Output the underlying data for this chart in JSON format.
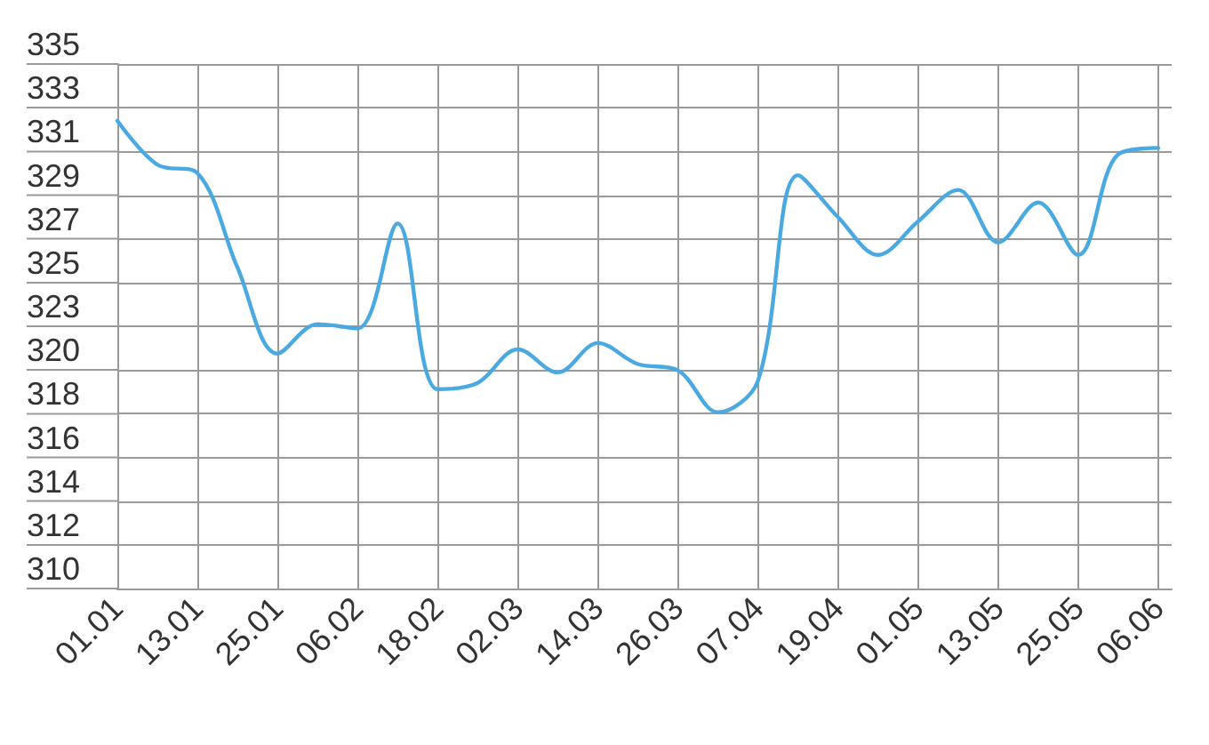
{
  "chart_data": {
    "type": "line",
    "x": [
      "--01-01",
      "--01-07",
      "--01-13",
      "--01-19",
      "--01-25",
      "--01-31",
      "--02-06",
      "--02-12",
      "--02-18",
      "--02-24",
      "--03-02",
      "--03-08",
      "--03-14",
      "--03-20",
      "--03-26",
      "--04-01",
      "--04-07",
      "--04-13",
      "--04-19",
      "--04-25",
      "--05-01",
      "--05-07",
      "--05-13",
      "--05-19",
      "--05-25",
      "--05-31",
      "--06-06"
    ],
    "values": [
      332.3,
      330.2,
      329.8,
      325.3,
      321.2,
      322.6,
      322.4,
      327.4,
      319.5,
      319.8,
      321.4,
      320.3,
      321.7,
      320.7,
      320.4,
      318.4,
      319.9,
      329.7,
      327.7,
      325.9,
      327.5,
      329.0,
      326.5,
      328.4,
      325.9,
      330.7,
      331.0
    ],
    "color": "#4ba9e2",
    "xlim": [
      "--01-01",
      "--06-08"
    ],
    "xticks": [
      {
        "value": "--01-01",
        "label": "01.01"
      },
      {
        "value": "--01-13",
        "label": "13.01"
      },
      {
        "value": "--01-25",
        "label": "25.01"
      },
      {
        "value": "--02-06",
        "label": "06.02"
      },
      {
        "value": "--02-18",
        "label": "18.02"
      },
      {
        "value": "--03-02",
        "label": "02.03"
      },
      {
        "value": "--03-14",
        "label": "14.03"
      },
      {
        "value": "--03-26",
        "label": "26.03"
      },
      {
        "value": "--04-07",
        "label": "07.04"
      },
      {
        "value": "--04-19",
        "label": "19.04"
      },
      {
        "value": "--05-01",
        "label": "01.05"
      },
      {
        "value": "--05-13",
        "label": "13.05"
      },
      {
        "value": "--05-25",
        "label": "25.05"
      },
      {
        "value": "--06-06",
        "label": "06.06"
      }
    ],
    "ylim": [
      310,
      335
    ],
    "yticks": [
      310,
      {
        "value": 312.08,
        "label": "312"
      },
      {
        "value": 314.17,
        "label": "314"
      },
      {
        "value": 316.25,
        "label": "316"
      },
      {
        "value": 318.33,
        "label": "318"
      },
      {
        "value": 320.42,
        "label": "320"
      },
      {
        "value": 322.5,
        "label": "323"
      },
      {
        "value": 324.58,
        "label": "325"
      },
      {
        "value": 326.67,
        "label": "327"
      },
      {
        "value": 328.75,
        "label": "329"
      },
      {
        "value": 330.83,
        "label": "331"
      },
      {
        "value": 332.92,
        "label": "333"
      },
      335
    ],
    "grid": true,
    "marker": "none",
    "line_style": "solid"
  }
}
